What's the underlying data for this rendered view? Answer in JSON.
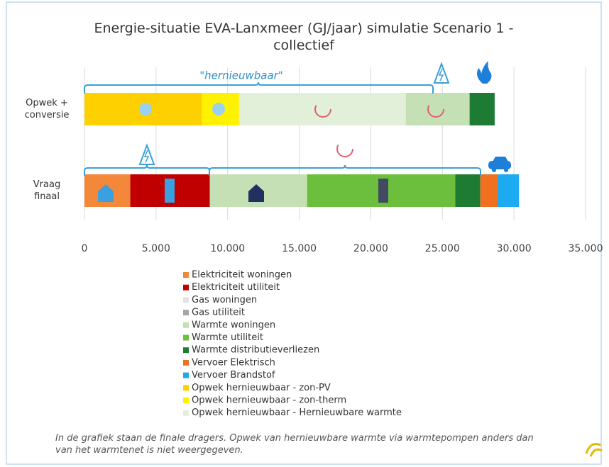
{
  "chart_data": {
    "type": "stacked-bar",
    "title": "Energie-situatie EVA-Lanxmeer (GJ/jaar) simulatie Scenario 1 - collectief",
    "annotation": "\"hernieuwbaar\"",
    "footnote": "In de grafiek staan de finale dragers. Opwek van hernieuwbare warmte via warmtepompen anders dan van het warmtenet is niet weergegeven.",
    "legend_items": [
      {
        "name": "Elektriciteit woningen",
        "color": "#f4883a"
      },
      {
        "name": "Elektriciteit utiliteit",
        "color": "#c00000"
      },
      {
        "name": "Gas woningen",
        "color": "#e4e4e4"
      },
      {
        "name": "Gas utiliteit",
        "color": "#a6a6a6"
      },
      {
        "name": "Warmte woningen",
        "color": "#c5e0b4"
      },
      {
        "name": "Warmte utiliteit",
        "color": "#6cbf3c"
      },
      {
        "name": "Warmte distributieverliezen",
        "color": "#1e7b34"
      },
      {
        "name": "Vervoer Elektrisch",
        "color": "#f07020"
      },
      {
        "name": "Vervoer Brandstof",
        "color": "#1eaaf0"
      },
      {
        "name": "Opwek hernieuwbaar - zon-PV",
        "color": "#ffd000"
      },
      {
        "name": "Opwek hernieuwbaar - zon-therm",
        "color": "#fff200"
      },
      {
        "name": "Opwek hernieuwbaar - Hernieuwbare warmte",
        "color": "#e2efd9"
      }
    ],
    "stacks": [
      {
        "category": "Opwek + conversie",
        "segments": [
          {
            "name": "Opwek hernieuwbaar - zon-PV",
            "value": 8200
          },
          {
            "name": "Opwek hernieuwbaar - zon-therm",
            "value": 2600
          },
          {
            "name": "Opwek hernieuwbaar - Hernieuwbare warmte",
            "value": 11650
          },
          {
            "name": "Warmte woningen",
            "value": 4450
          },
          {
            "name": "Warmte distributieverliezen",
            "value": 1750
          }
        ]
      },
      {
        "category": "Vraag finaal",
        "segments": [
          {
            "name": "Elektriciteit woningen",
            "value": 3200
          },
          {
            "name": "Elektriciteit utiliteit",
            "value": 5550
          },
          {
            "name": "Warmte woningen",
            "value": 6800
          },
          {
            "name": "Warmte utiliteit",
            "value": 10350
          },
          {
            "name": "Warmte distributieverliezen",
            "value": 1750
          },
          {
            "name": "Vervoer Elektrisch",
            "value": 1200
          },
          {
            "name": "Vervoer Brandstof",
            "value": 1500
          }
        ]
      }
    ],
    "xlim": [
      0,
      35000
    ],
    "xticks": [
      0,
      {
        "value": 5000,
        "label": "5.000"
      },
      {
        "value": 10000,
        "label": "10.000"
      },
      {
        "value": 15000,
        "label": "15.000"
      },
      {
        "value": 20000,
        "label": "20.000"
      },
      {
        "value": 25000,
        "label": "25.000"
      },
      {
        "value": 30000,
        "label": "30.000"
      },
      {
        "value": 35000,
        "label": "35.000"
      }
    ],
    "grid": true
  }
}
